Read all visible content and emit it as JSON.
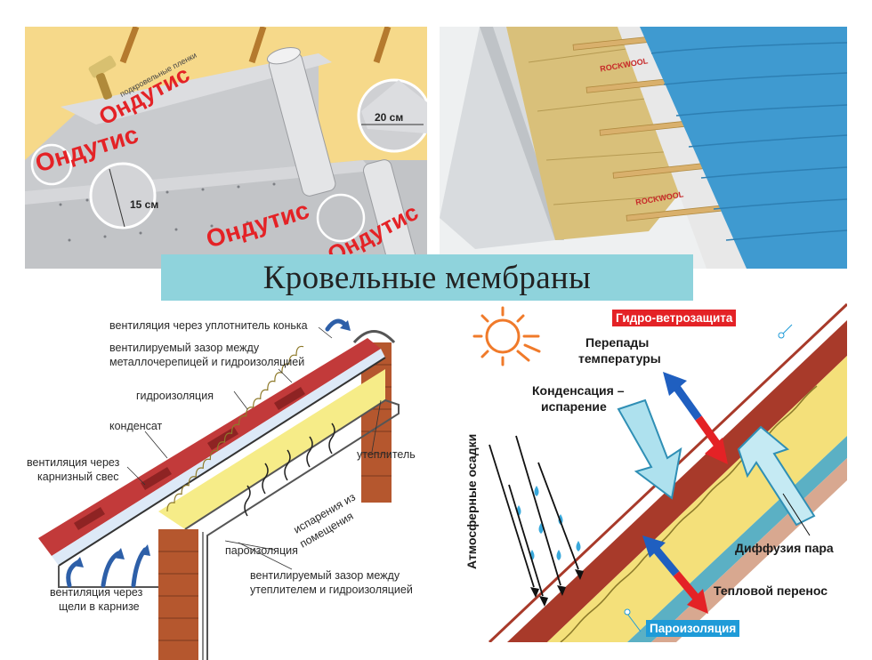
{
  "title": "Кровельные мембраны",
  "top_left": {
    "brand": "Ондутис",
    "brand_small": "подкровельные пленки",
    "overlap_horizontal": "20 см",
    "overlap_vertical": "15 см"
  },
  "top_right": {
    "brand": "ROCKWOOL"
  },
  "bottom_left": {
    "labels": {
      "ridge_vent": "вентиляция через уплотнитель конька",
      "gap1_line1": "вентилируемый зазор между",
      "gap1_line2": "металлочерепицей и гидроизоляцией",
      "waterproofing": "гидроизоляция",
      "condensate": "конденсат",
      "eave_vent_line1": "вентиляция через",
      "eave_vent_line2": "карнизный свес",
      "insulation": "утеплитель",
      "evap_line1": "испарения из",
      "evap_line2": "помещения",
      "vapor_barrier": "пароизоляция",
      "gap2_line1": "вентилируемый зазор между",
      "gap2_line2": "утеплителем и гидроизоляцией",
      "slot_vent_line1": "вентиляция через",
      "slot_vent_line2": "щели в карнизе"
    }
  },
  "bottom_right": {
    "labels": {
      "wind_protection": "Гидро-ветрозащита",
      "temp_line1": "Перепады",
      "temp_line2": "температуры",
      "cond_line1": "Конденсация –",
      "cond_line2": "испарение",
      "precipitation": "Атмосферные осадки",
      "vapor_diffusion": "Диффузия пара",
      "heat_transfer": "Тепловой перенос",
      "vapor_barrier": "Пароизоляция"
    }
  }
}
